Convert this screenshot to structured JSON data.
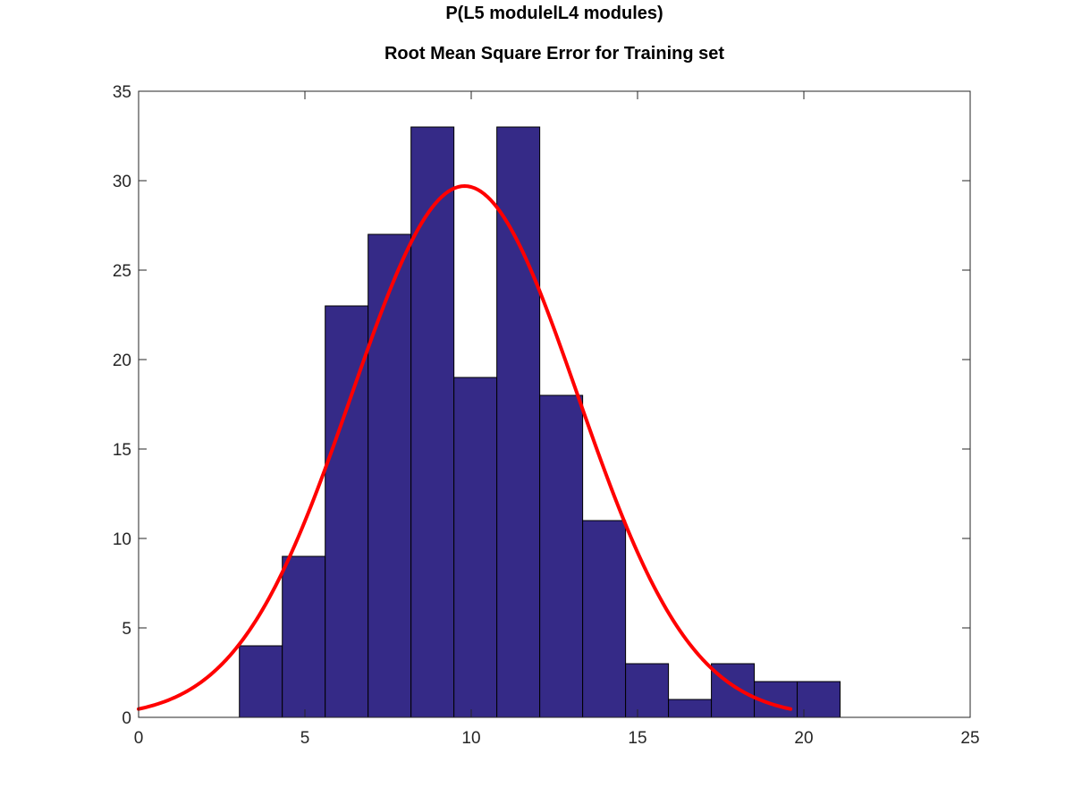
{
  "chart_data": {
    "type": "bar",
    "title": "P(L5 modulelL4 modules)",
    "subtitle": "Root Mean Square Error for Training set",
    "xlabel": "",
    "ylabel": "",
    "xlim": [
      0,
      25
    ],
    "ylim": [
      0,
      35
    ],
    "x_ticks": [
      0,
      5,
      10,
      15,
      20,
      25
    ],
    "y_ticks": [
      0,
      5,
      10,
      15,
      20,
      25,
      30,
      35
    ],
    "bins": [
      {
        "x0": 3.03,
        "x1": 4.32,
        "count": 4
      },
      {
        "x0": 4.32,
        "x1": 5.61,
        "count": 9
      },
      {
        "x0": 5.61,
        "x1": 6.9,
        "count": 23
      },
      {
        "x0": 6.9,
        "x1": 8.19,
        "count": 27
      },
      {
        "x0": 8.19,
        "x1": 9.48,
        "count": 33
      },
      {
        "x0": 9.48,
        "x1": 10.77,
        "count": 19
      },
      {
        "x0": 10.77,
        "x1": 12.06,
        "count": 33
      },
      {
        "x0": 12.06,
        "x1": 13.35,
        "count": 18
      },
      {
        "x0": 13.35,
        "x1": 14.64,
        "count": 11
      },
      {
        "x0": 14.64,
        "x1": 15.93,
        "count": 3
      },
      {
        "x0": 15.93,
        "x1": 17.22,
        "count": 1
      },
      {
        "x0": 17.22,
        "x1": 18.51,
        "count": 3
      },
      {
        "x0": 18.51,
        "x1": 19.8,
        "count": 2
      },
      {
        "x0": 19.8,
        "x1": 21.09,
        "count": 2
      }
    ],
    "fit_curve": {
      "type": "normal",
      "peak": 29.7,
      "mean": 9.8,
      "sd": 3.4,
      "x_range": [
        0,
        19.6
      ]
    },
    "grid": false,
    "colors": {
      "bar_fill": "#352a87",
      "bar_edge": "#000000",
      "curve": "#ff0000",
      "axes": "#262626"
    }
  }
}
